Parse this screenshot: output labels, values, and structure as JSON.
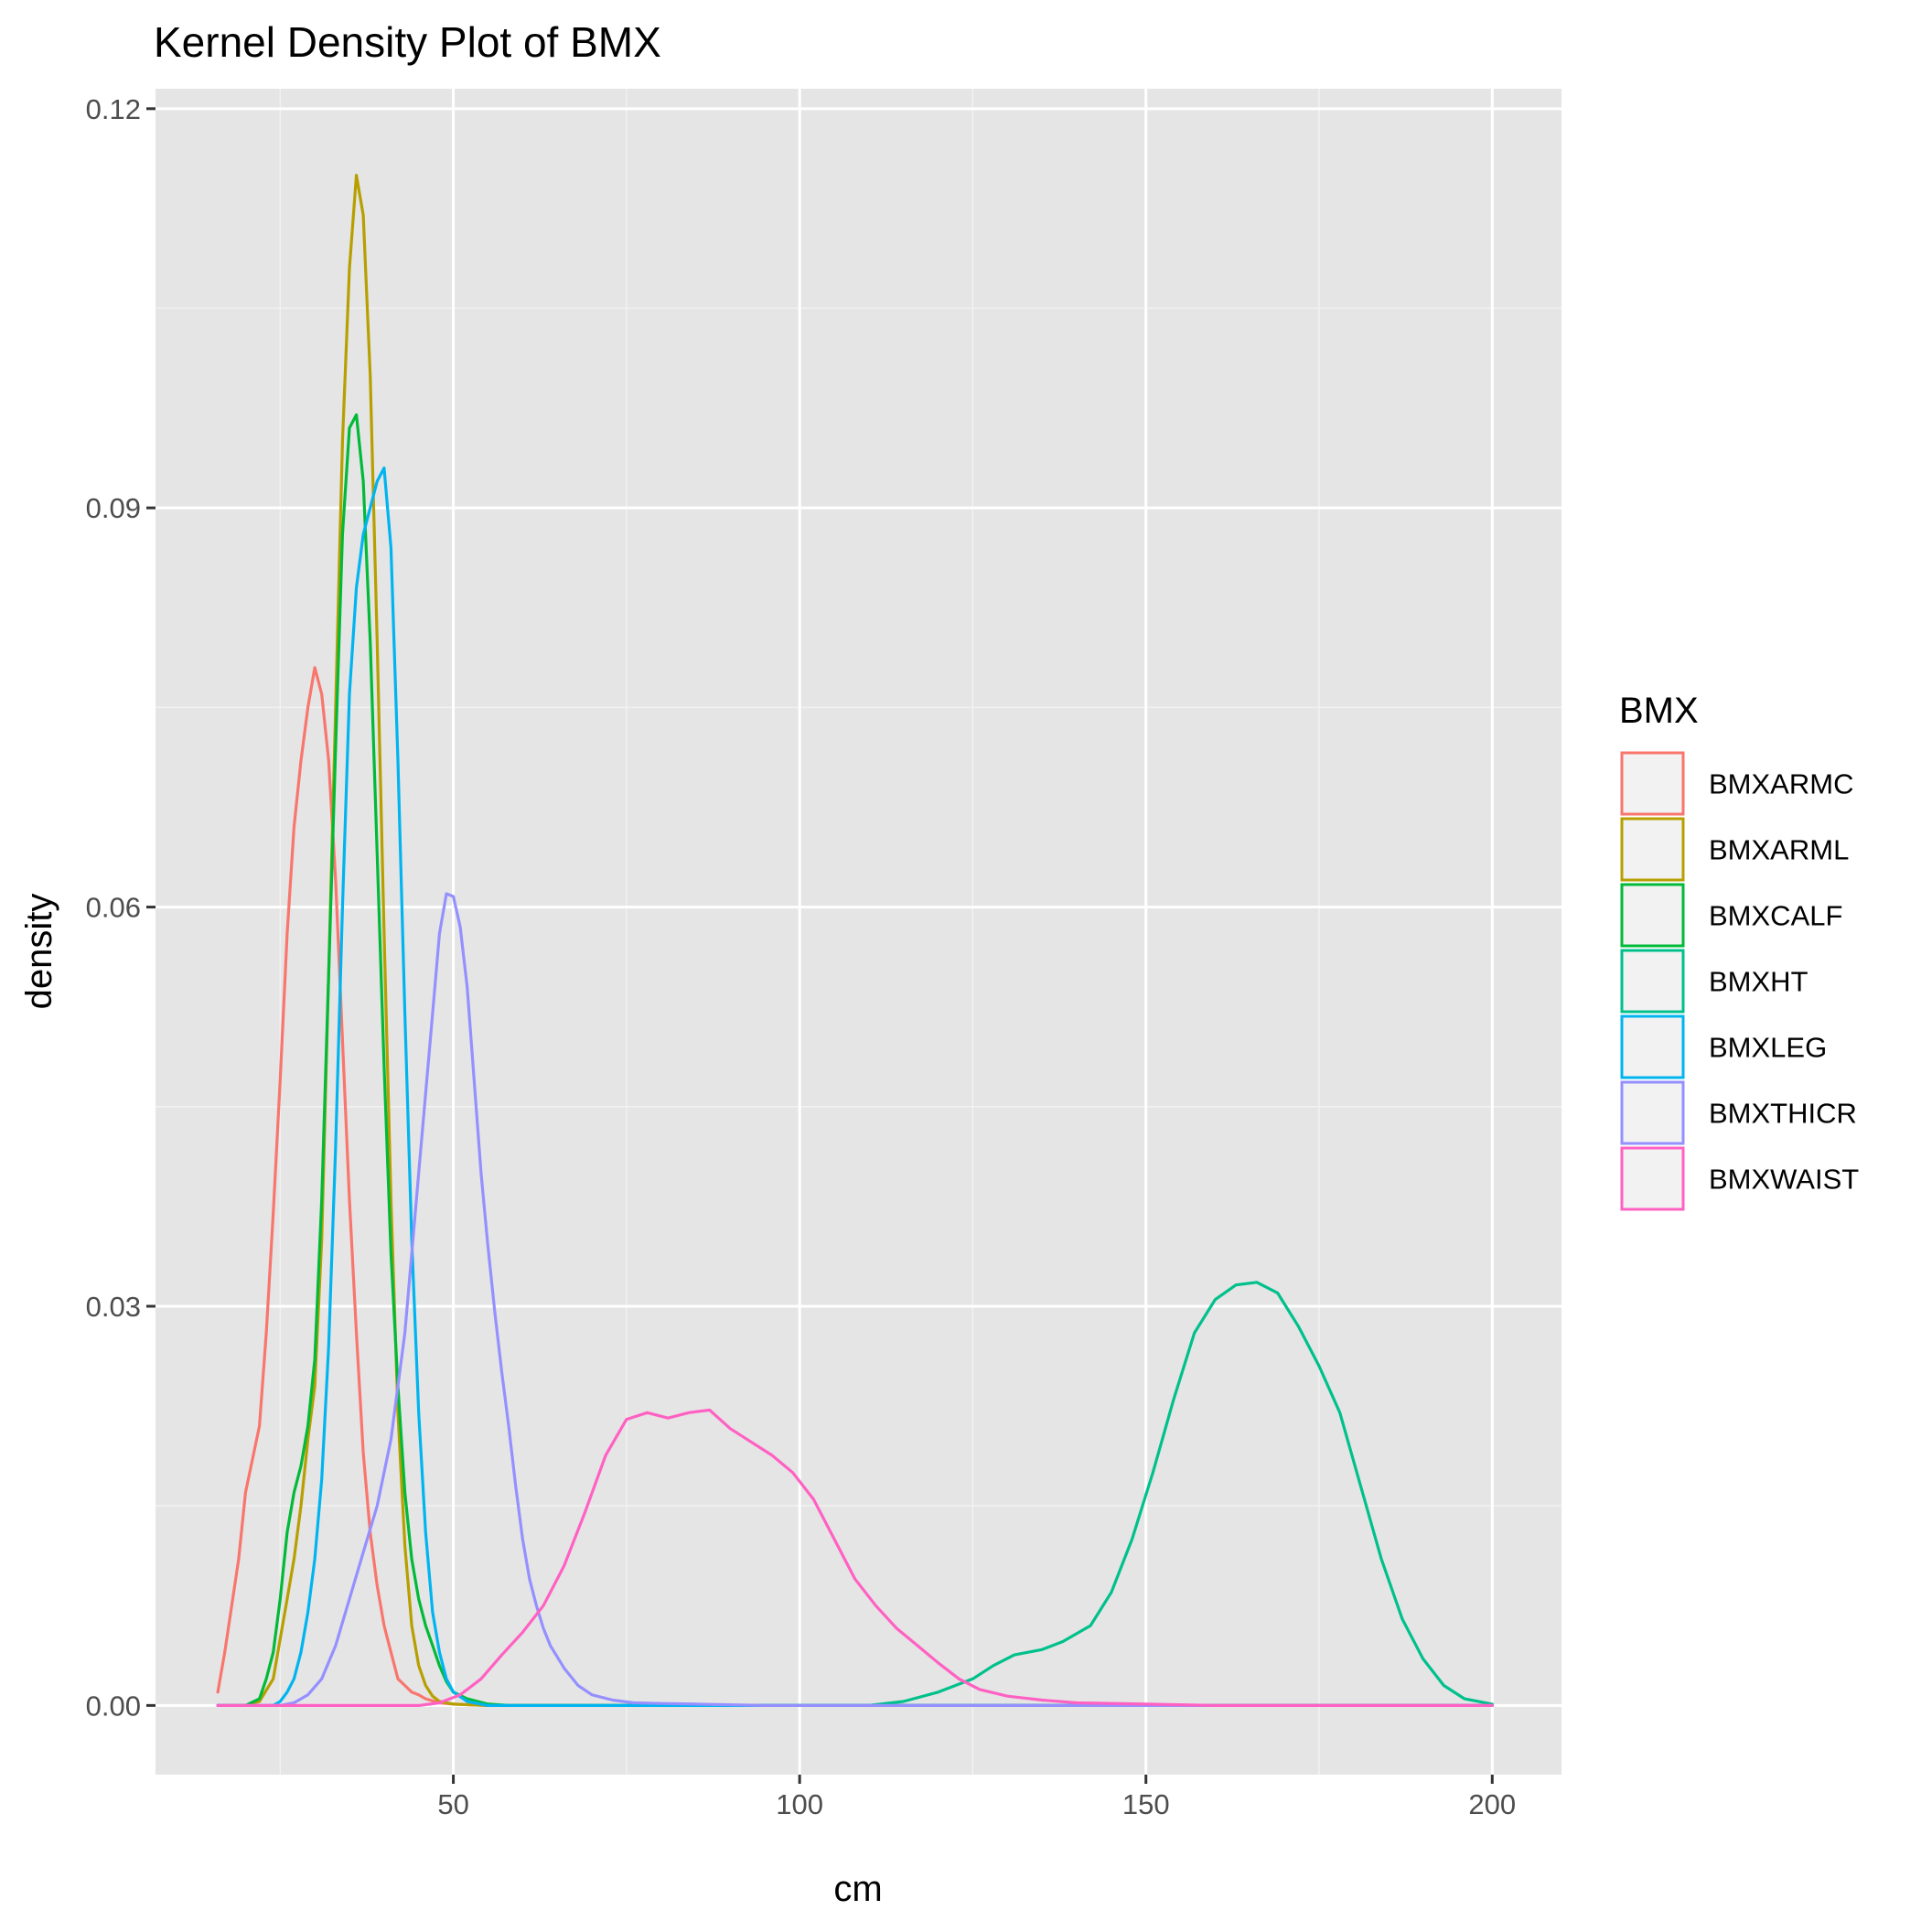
{
  "chart_data": {
    "type": "line",
    "title": "Kernel Density Plot of BMX",
    "xlabel": "cm",
    "ylabel": "density",
    "xlim": [
      7,
      210
    ],
    "ylim": [
      -0.0052,
      0.1215
    ],
    "x_ticks": [
      {
        "value": 50,
        "label": "50"
      },
      {
        "value": 100,
        "label": "100"
      },
      {
        "value": 150,
        "label": "150"
      },
      {
        "value": 200,
        "label": "200"
      }
    ],
    "x_minor": [
      25,
      75,
      125,
      175
    ],
    "y_ticks": [
      {
        "value": 0,
        "label": "0.00"
      },
      {
        "value": 0.03,
        "label": "0.03"
      },
      {
        "value": 0.06,
        "label": "0.06"
      },
      {
        "value": 0.09,
        "label": "0.09"
      },
      {
        "value": 0.12,
        "label": "0.12"
      }
    ],
    "y_minor": [
      0.015,
      0.045,
      0.075,
      0.105
    ],
    "grid": true,
    "legend": {
      "title": "BMX",
      "position": "right"
    },
    "series": [
      {
        "name": "BMXARMC",
        "color": "#F8766D",
        "points": [
          [
            16,
            0.001
          ],
          [
            17,
            0.004
          ],
          [
            19,
            0.011
          ],
          [
            20,
            0.016
          ],
          [
            22,
            0.021
          ],
          [
            23,
            0.028
          ],
          [
            24,
            0.037
          ],
          [
            25,
            0.047
          ],
          [
            26,
            0.058
          ],
          [
            27,
            0.066
          ],
          [
            28,
            0.071
          ],
          [
            29,
            0.075
          ],
          [
            30,
            0.078
          ],
          [
            31,
            0.076
          ],
          [
            32,
            0.071
          ],
          [
            33,
            0.062
          ],
          [
            34,
            0.05
          ],
          [
            35,
            0.038
          ],
          [
            36,
            0.028
          ],
          [
            37,
            0.019
          ],
          [
            38,
            0.013
          ],
          [
            39,
            0.009
          ],
          [
            40,
            0.006
          ],
          [
            41,
            0.004
          ],
          [
            42,
            0.002
          ],
          [
            43,
            0.0015
          ],
          [
            44,
            0.001
          ],
          [
            45,
            0.0008
          ],
          [
            46,
            0.0005
          ],
          [
            48,
            0.0002
          ],
          [
            50,
            0.0001
          ],
          [
            55,
            0
          ],
          [
            200,
            0
          ]
        ]
      },
      {
        "name": "BMXARML",
        "color": "#B79F00",
        "points": [
          [
            16,
            0
          ],
          [
            20,
            0
          ],
          [
            22,
            0.0003
          ],
          [
            24,
            0.002
          ],
          [
            25,
            0.005
          ],
          [
            26,
            0.008
          ],
          [
            27,
            0.011
          ],
          [
            28,
            0.015
          ],
          [
            29,
            0.02
          ],
          [
            30,
            0.024
          ],
          [
            31,
            0.035
          ],
          [
            32,
            0.055
          ],
          [
            33,
            0.075
          ],
          [
            34,
            0.095
          ],
          [
            35,
            0.108
          ],
          [
            36,
            0.115
          ],
          [
            37,
            0.112
          ],
          [
            38,
            0.1
          ],
          [
            39,
            0.08
          ],
          [
            40,
            0.058
          ],
          [
            41,
            0.038
          ],
          [
            42,
            0.022
          ],
          [
            43,
            0.012
          ],
          [
            44,
            0.006
          ],
          [
            45,
            0.003
          ],
          [
            46,
            0.0015
          ],
          [
            47,
            0.0007
          ],
          [
            48,
            0.0003
          ],
          [
            50,
            0.0001
          ],
          [
            55,
            0
          ],
          [
            200,
            0
          ]
        ]
      },
      {
        "name": "BMXCALF",
        "color": "#00BA38",
        "points": [
          [
            16,
            0
          ],
          [
            20,
            0
          ],
          [
            22,
            0.0005
          ],
          [
            23,
            0.002
          ],
          [
            24,
            0.004
          ],
          [
            25,
            0.008
          ],
          [
            26,
            0.013
          ],
          [
            27,
            0.016
          ],
          [
            28,
            0.018
          ],
          [
            29,
            0.021
          ],
          [
            30,
            0.026
          ],
          [
            31,
            0.038
          ],
          [
            32,
            0.055
          ],
          [
            33,
            0.072
          ],
          [
            34,
            0.088
          ],
          [
            35,
            0.096
          ],
          [
            36,
            0.097
          ],
          [
            37,
            0.092
          ],
          [
            38,
            0.08
          ],
          [
            39,
            0.064
          ],
          [
            40,
            0.048
          ],
          [
            41,
            0.034
          ],
          [
            42,
            0.024
          ],
          [
            43,
            0.016
          ],
          [
            44,
            0.011
          ],
          [
            45,
            0.008
          ],
          [
            46,
            0.006
          ],
          [
            47,
            0.0045
          ],
          [
            48,
            0.003
          ],
          [
            49,
            0.0018
          ],
          [
            50,
            0.001
          ],
          [
            52,
            0.0005
          ],
          [
            55,
            0.0001
          ],
          [
            58,
            0
          ],
          [
            200,
            0
          ]
        ]
      },
      {
        "name": "BMXHT",
        "color": "#00C08B",
        "points": [
          [
            80,
            0
          ],
          [
            110,
            0
          ],
          [
            115,
            0.0003
          ],
          [
            120,
            0.001
          ],
          [
            125,
            0.002
          ],
          [
            128,
            0.003
          ],
          [
            131,
            0.0038
          ],
          [
            135,
            0.0042
          ],
          [
            138,
            0.0048
          ],
          [
            142,
            0.006
          ],
          [
            145,
            0.0085
          ],
          [
            148,
            0.0125
          ],
          [
            151,
            0.0175
          ],
          [
            154,
            0.023
          ],
          [
            157,
            0.028
          ],
          [
            160,
            0.0305
          ],
          [
            163,
            0.0316
          ],
          [
            166,
            0.0318
          ],
          [
            169,
            0.031
          ],
          [
            172,
            0.0285
          ],
          [
            175,
            0.0255
          ],
          [
            178,
            0.022
          ],
          [
            181,
            0.0165
          ],
          [
            184,
            0.011
          ],
          [
            187,
            0.0065
          ],
          [
            190,
            0.0035
          ],
          [
            193,
            0.0015
          ],
          [
            196,
            0.0005
          ],
          [
            200,
            0.0001
          ]
        ]
      },
      {
        "name": "BMXLEG",
        "color": "#00B4F0",
        "points": [
          [
            16,
            0
          ],
          [
            24,
            0
          ],
          [
            25,
            0.0003
          ],
          [
            26,
            0.001
          ],
          [
            27,
            0.002
          ],
          [
            28,
            0.004
          ],
          [
            29,
            0.007
          ],
          [
            30,
            0.011
          ],
          [
            31,
            0.017
          ],
          [
            32,
            0.027
          ],
          [
            33,
            0.042
          ],
          [
            34,
            0.06
          ],
          [
            35,
            0.076
          ],
          [
            36,
            0.084
          ],
          [
            37,
            0.088
          ],
          [
            38,
            0.09
          ],
          [
            39,
            0.092
          ],
          [
            40,
            0.093
          ],
          [
            41,
            0.087
          ],
          [
            42,
            0.071
          ],
          [
            43,
            0.052
          ],
          [
            44,
            0.035
          ],
          [
            45,
            0.022
          ],
          [
            46,
            0.013
          ],
          [
            47,
            0.007
          ],
          [
            48,
            0.004
          ],
          [
            49,
            0.002
          ],
          [
            50,
            0.001
          ],
          [
            52,
            0.0003
          ],
          [
            55,
            0
          ],
          [
            200,
            0
          ]
        ]
      },
      {
        "name": "BMXTHICR",
        "color": "#9590FF",
        "points": [
          [
            16,
            0
          ],
          [
            25,
            0
          ],
          [
            27,
            0.0002
          ],
          [
            29,
            0.0008
          ],
          [
            31,
            0.002
          ],
          [
            33,
            0.0045
          ],
          [
            35,
            0.008
          ],
          [
            37,
            0.0115
          ],
          [
            39,
            0.015
          ],
          [
            41,
            0.02
          ],
          [
            43,
            0.028
          ],
          [
            45,
            0.04
          ],
          [
            47,
            0.052
          ],
          [
            48,
            0.058
          ],
          [
            49,
            0.061
          ],
          [
            50,
            0.0608
          ],
          [
            51,
            0.0585
          ],
          [
            52,
            0.054
          ],
          [
            53,
            0.047
          ],
          [
            54,
            0.04
          ],
          [
            55,
            0.0345
          ],
          [
            56,
            0.0295
          ],
          [
            57,
            0.025
          ],
          [
            58,
            0.021
          ],
          [
            59,
            0.0165
          ],
          [
            60,
            0.0125
          ],
          [
            61,
            0.0095
          ],
          [
            62,
            0.0075
          ],
          [
            63,
            0.0058
          ],
          [
            64,
            0.0045
          ],
          [
            66,
            0.0028
          ],
          [
            68,
            0.0015
          ],
          [
            70,
            0.0008
          ],
          [
            73,
            0.0004
          ],
          [
            76,
            0.0002
          ],
          [
            80,
            0.00015
          ],
          [
            85,
            0.0001
          ],
          [
            95,
            0
          ],
          [
            200,
            0
          ]
        ]
      },
      {
        "name": "BMXWAIST",
        "color": "#FF61C3",
        "points": [
          [
            16,
            0
          ],
          [
            45,
            0
          ],
          [
            48,
            0.0002
          ],
          [
            51,
            0.0008
          ],
          [
            54,
            0.002
          ],
          [
            57,
            0.0038
          ],
          [
            60,
            0.0055
          ],
          [
            63,
            0.0075
          ],
          [
            66,
            0.0105
          ],
          [
            69,
            0.0145
          ],
          [
            72,
            0.0188
          ],
          [
            75,
            0.0215
          ],
          [
            78,
            0.022
          ],
          [
            81,
            0.0216
          ],
          [
            84,
            0.022
          ],
          [
            87,
            0.0222
          ],
          [
            90,
            0.0208
          ],
          [
            93,
            0.0198
          ],
          [
            96,
            0.0188
          ],
          [
            99,
            0.0175
          ],
          [
            102,
            0.0155
          ],
          [
            105,
            0.0125
          ],
          [
            108,
            0.0095
          ],
          [
            111,
            0.0075
          ],
          [
            114,
            0.0058
          ],
          [
            117,
            0.0045
          ],
          [
            120,
            0.0032
          ],
          [
            123,
            0.002
          ],
          [
            126,
            0.0012
          ],
          [
            130,
            0.0007
          ],
          [
            135,
            0.0004
          ],
          [
            140,
            0.0002
          ],
          [
            150,
            0.0001
          ],
          [
            160,
            0
          ],
          [
            200,
            0
          ]
        ]
      }
    ]
  }
}
